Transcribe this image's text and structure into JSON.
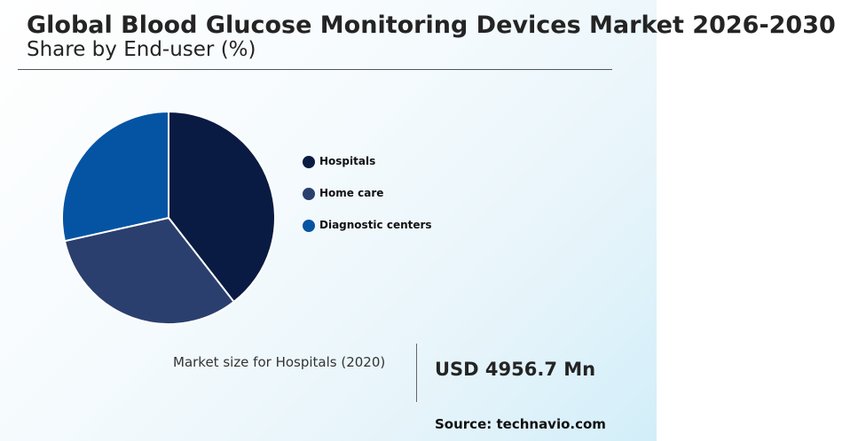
{
  "header": {
    "title": "Global Blood Glucose Monitoring Devices Market 2026-2030",
    "subtitle": "Share by End-user (%)"
  },
  "chart_data": {
    "type": "pie",
    "title": "Global Blood Glucose Monitoring Devices Market 2026-2030",
    "subtitle": "Share by End-user (%)",
    "categories": [
      "Hospitals",
      "Home care",
      "Diagnostic centers"
    ],
    "values": [
      39.5,
      32.0,
      28.5
    ],
    "colors": [
      "#091b42",
      "#2b3f6e",
      "#0554a3"
    ],
    "legend_position": "right",
    "start_angle": "top, clockwise"
  },
  "legend": {
    "items": [
      {
        "label": "Hospitals",
        "color": "#091b42"
      },
      {
        "label": "Home care",
        "color": "#2b3f6e"
      },
      {
        "label": "Diagnostic centers",
        "color": "#0554a3"
      }
    ]
  },
  "market": {
    "label": "Market size for Hospitals (2020)",
    "value": "USD 4956.7 Mn"
  },
  "footer": {
    "source": "Source: technavio.com"
  }
}
